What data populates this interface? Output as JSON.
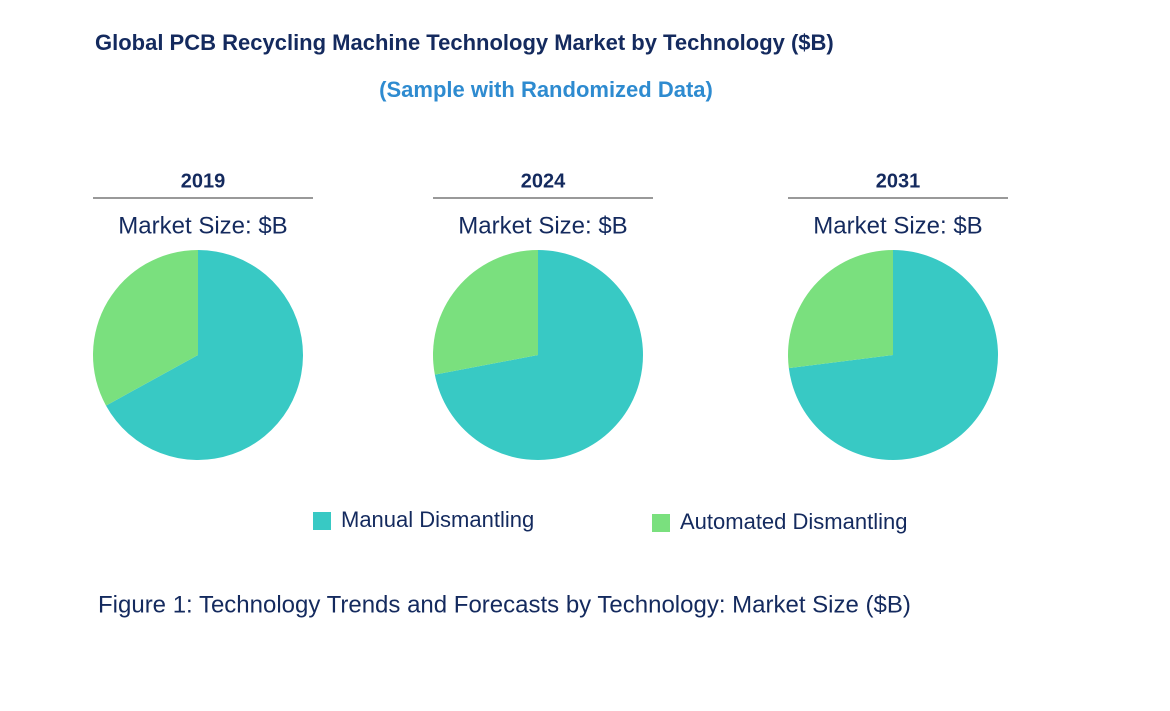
{
  "title": "Global PCB Recycling Machine Technology Market by Technology ($B)",
  "subtitle": "(Sample with Randomized Data)",
  "caption": "Figure 1: Technology Trends and Forecasts by Technology: Market Size ($B)",
  "chart_data": [
    {
      "type": "pie",
      "title": "2019",
      "subtitle": "Market Size: $B",
      "categories": [
        "Manual Dismantling",
        "Automated Dismantling"
      ],
      "values": [
        67,
        33
      ],
      "colors": [
        "#38c9c4",
        "#7ae07e"
      ]
    },
    {
      "type": "pie",
      "title": "2024",
      "subtitle": "Market Size: $B",
      "categories": [
        "Manual Dismantling",
        "Automated Dismantling"
      ],
      "values": [
        72,
        28
      ],
      "colors": [
        "#38c9c4",
        "#7ae07e"
      ]
    },
    {
      "type": "pie",
      "title": "2031",
      "subtitle": "Market Size: $B",
      "categories": [
        "Manual Dismantling",
        "Automated Dismantling"
      ],
      "values": [
        73,
        27
      ],
      "colors": [
        "#38c9c4",
        "#7ae07e"
      ]
    }
  ]
}
